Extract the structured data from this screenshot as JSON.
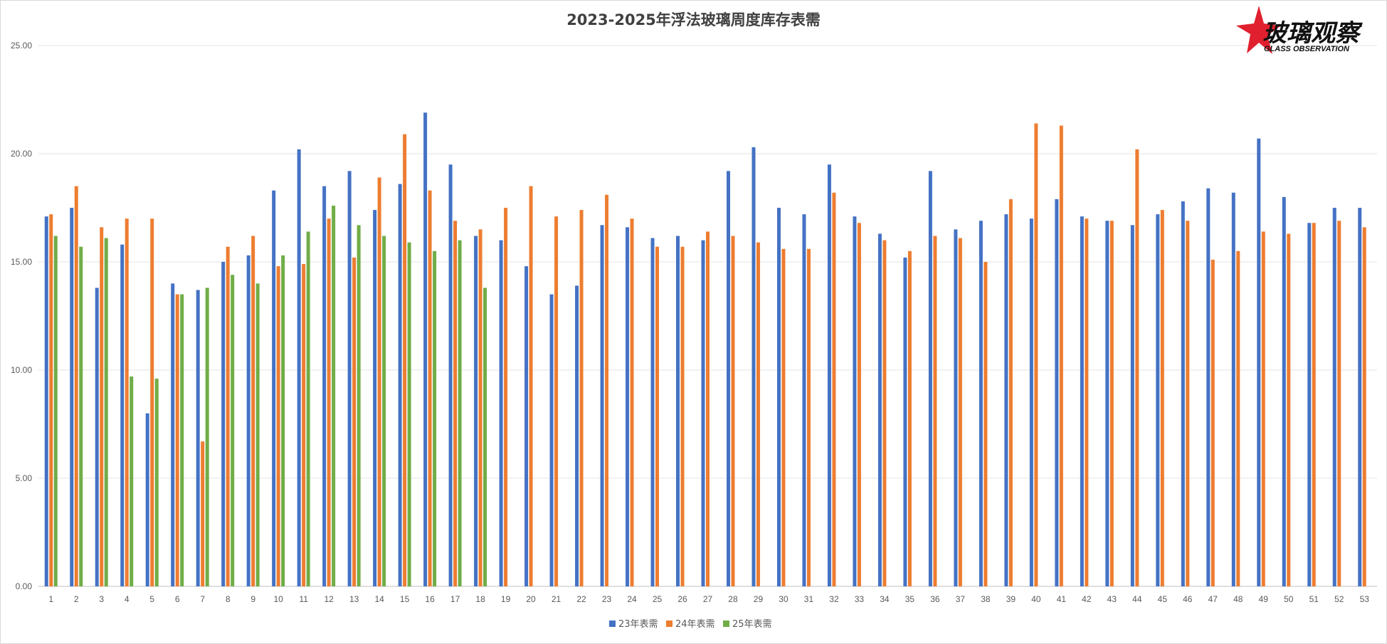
{
  "title": "2023-2025年浮法玻璃周度库存表需",
  "logo": {
    "text_cn": "玻璃观察",
    "text_en": "GLASS OBSERVATION"
  },
  "chart_data": {
    "type": "bar",
    "title": "2023-2025年浮法玻璃周度库存表需",
    "xlabel": "",
    "ylabel": "",
    "ylim": [
      0,
      25
    ],
    "yticks": [
      "0.00",
      "5.00",
      "10.00",
      "15.00",
      "20.00",
      "25.00"
    ],
    "grid": true,
    "legend_position": "bottom",
    "categories": [
      "1",
      "2",
      "3",
      "4",
      "5",
      "6",
      "7",
      "8",
      "9",
      "10",
      "11",
      "12",
      "13",
      "14",
      "15",
      "16",
      "17",
      "18",
      "19",
      "20",
      "21",
      "22",
      "23",
      "24",
      "25",
      "26",
      "27",
      "28",
      "29",
      "30",
      "31",
      "32",
      "33",
      "34",
      "35",
      "36",
      "37",
      "38",
      "39",
      "40",
      "41",
      "42",
      "43",
      "44",
      "45",
      "46",
      "47",
      "48",
      "49",
      "50",
      "51",
      "52",
      "53"
    ],
    "series": [
      {
        "name": "23年表需",
        "color": "#4472C4",
        "values": [
          17.1,
          17.5,
          13.8,
          15.8,
          8.0,
          14.0,
          13.7,
          15.0,
          15.3,
          18.3,
          20.2,
          18.5,
          19.2,
          17.4,
          18.6,
          21.9,
          19.5,
          16.2,
          16.0,
          14.8,
          13.5,
          13.9,
          16.7,
          16.6,
          16.1,
          16.2,
          16.0,
          19.2,
          20.3,
          17.5,
          17.2,
          19.5,
          17.1,
          16.3,
          15.2,
          19.2,
          16.5,
          16.9,
          17.2,
          17.0,
          17.9,
          17.1,
          16.9,
          16.7,
          17.2,
          17.8,
          18.4,
          18.2,
          20.7,
          18.0,
          16.8,
          17.5,
          17.5
        ]
      },
      {
        "name": "24年表需",
        "color": "#ED7D31",
        "values": [
          17.2,
          18.5,
          16.6,
          17.0,
          17.0,
          13.5,
          6.7,
          15.7,
          16.2,
          14.8,
          14.9,
          17.0,
          15.2,
          18.9,
          20.9,
          18.3,
          16.9,
          16.5,
          17.5,
          18.5,
          17.1,
          17.4,
          18.1,
          17.0,
          15.7,
          15.7,
          16.4,
          16.2,
          15.9,
          15.6,
          15.6,
          18.2,
          16.8,
          16.0,
          15.5,
          16.2,
          16.1,
          15.0,
          17.9,
          21.4,
          21.3,
          17.0,
          16.9,
          20.2,
          17.4,
          16.9,
          15.1,
          15.5,
          16.4,
          16.3,
          16.8,
          16.9,
          16.6
        ]
      },
      {
        "name": "25年表需",
        "color": "#70AD47",
        "values": [
          16.2,
          15.7,
          16.1,
          9.7,
          9.6,
          13.5,
          13.8,
          14.4,
          14.0,
          15.3,
          16.4,
          17.6,
          16.7,
          16.2,
          15.9,
          15.5,
          16.0,
          13.8,
          null,
          null,
          null,
          null,
          null,
          null,
          null,
          null,
          null,
          null,
          null,
          null,
          null,
          null,
          null,
          null,
          null,
          null,
          null,
          null,
          null,
          null,
          null,
          null,
          null,
          null,
          null,
          null,
          null,
          null,
          null,
          null,
          null,
          null,
          null
        ]
      }
    ]
  }
}
